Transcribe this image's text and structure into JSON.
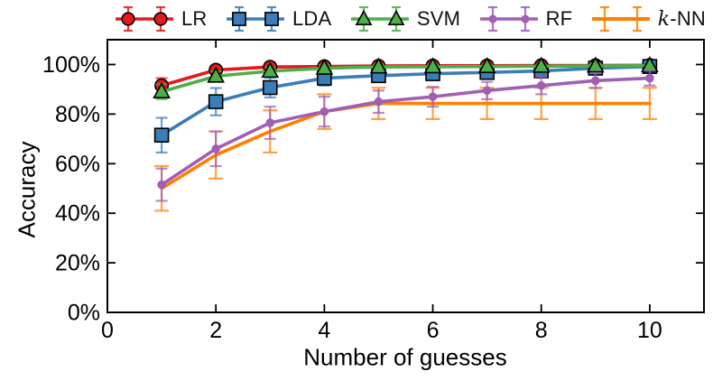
{
  "legend": {
    "items": [
      {
        "label": "LR"
      },
      {
        "label": "LDA"
      },
      {
        "label": "SVM"
      },
      {
        "label": "RF"
      },
      {
        "label_italic": "k",
        "label": "-NN"
      }
    ]
  },
  "chart_data": {
    "type": "line",
    "title": "",
    "xlabel": "Number of guesses",
    "ylabel": "Accuracy",
    "xlim": [
      0,
      11
    ],
    "ylim": [
      0,
      110
    ],
    "grid": false,
    "legend_position": "top-outside-horizontal",
    "x_ticks": [
      0,
      2,
      4,
      6,
      8,
      10
    ],
    "y_tick_values": [
      0,
      20,
      40,
      60,
      80,
      100
    ],
    "y_tick_labels": [
      "0%",
      "20%",
      "40%",
      "60%",
      "80%",
      "100%"
    ],
    "x": [
      1,
      2,
      3,
      4,
      5,
      6,
      7,
      8,
      9,
      10
    ],
    "series": [
      {
        "name": "LR",
        "marker": "circle",
        "color": "#e41a1c",
        "values": [
          91.5,
          97.8,
          99.0,
          99.2,
          99.4,
          99.5,
          99.5,
          99.6,
          99.6,
          99.7
        ],
        "errors": [
          3.0,
          1.5,
          1.2,
          1.0,
          0.8,
          0.7,
          0.7,
          0.6,
          0.6,
          0.5
        ]
      },
      {
        "name": "LDA",
        "marker": "square",
        "color": "#3a7db8",
        "values": [
          71.5,
          85.0,
          90.7,
          94.5,
          95.5,
          96.3,
          96.8,
          97.4,
          98.5,
          99.2
        ],
        "errors": [
          7.0,
          5.5,
          4.0,
          3.0,
          2.5,
          2.2,
          2.0,
          1.8,
          1.5,
          1.2
        ]
      },
      {
        "name": "SVM",
        "marker": "triangle",
        "color": "#4daf4a",
        "values": [
          89.0,
          95.3,
          97.3,
          98.5,
          99.0,
          99.1,
          99.2,
          99.3,
          99.4,
          99.5
        ],
        "errors": [
          3.0,
          2.0,
          1.5,
          1.2,
          1.0,
          0.9,
          0.8,
          0.7,
          0.6,
          0.6
        ]
      },
      {
        "name": "RF",
        "marker": "dot",
        "color": "#a05fb5",
        "values": [
          51.5,
          66.0,
          76.5,
          81.0,
          85.0,
          87.0,
          89.5,
          91.5,
          93.5,
          94.5
        ],
        "errors": [
          6.5,
          7.0,
          6.5,
          6.0,
          4.5,
          4.0,
          3.5,
          3.5,
          3.0,
          3.0
        ]
      },
      {
        "name": "k-NN",
        "marker": "none",
        "color": "#ff7f00",
        "values": [
          50.0,
          63.5,
          73.0,
          81.0,
          84.3,
          84.3,
          84.3,
          84.3,
          84.3,
          84.3
        ],
        "errors": [
          9.0,
          9.5,
          8.5,
          7.0,
          6.3,
          6.3,
          6.3,
          6.3,
          6.3,
          6.3
        ]
      }
    ]
  }
}
